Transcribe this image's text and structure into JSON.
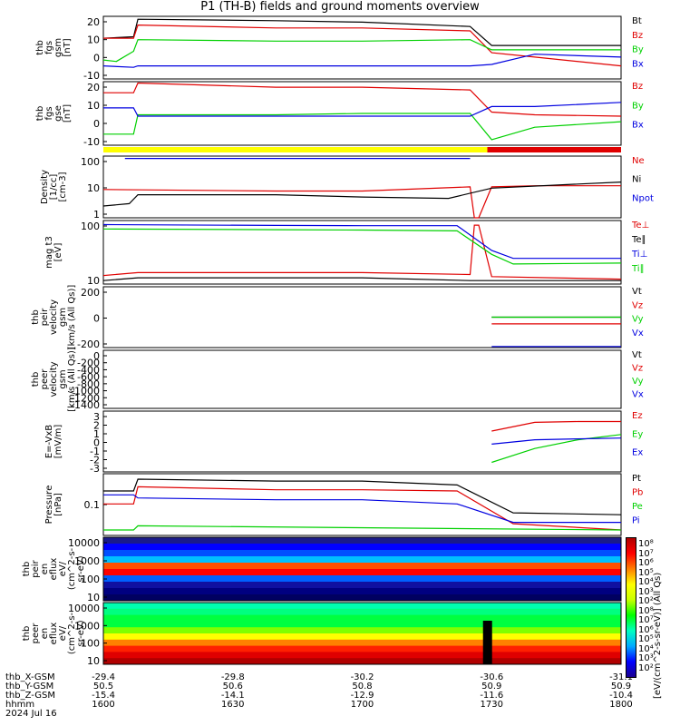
{
  "title": "P1 (TH-B) fields and ground moments overview",
  "colors": {
    "black": "#000000",
    "red": "#e00000",
    "green": "#00d000",
    "blue": "#0000e0",
    "yellow": "#ffff00"
  },
  "panels": [
    {
      "id": "fgs-gsm",
      "ylabel": [
        "thb",
        "fgs",
        "gsm",
        "[nT]"
      ],
      "yticks": [
        "20",
        "10",
        "0",
        "-10"
      ],
      "legend": [
        {
          "t": "Bt",
          "c": "black"
        },
        {
          "t": "Bz",
          "c": "red"
        },
        {
          "t": "By",
          "c": "green"
        },
        {
          "t": "Bx",
          "c": "blue"
        }
      ]
    },
    {
      "id": "fgs-gse",
      "ylabel": [
        "thb",
        "fgs",
        "gse",
        "[nT]"
      ],
      "yticks": [
        "20",
        "10",
        "0",
        "-10"
      ],
      "legend": [
        {
          "t": "Bz",
          "c": "red"
        },
        {
          "t": "By",
          "c": "green"
        },
        {
          "t": "Bx",
          "c": "blue"
        }
      ]
    },
    {
      "id": "density",
      "ylabel": [
        "Density",
        "[1/cc]",
        "[cm-3]"
      ],
      "yticks": [
        "100",
        "10",
        "1"
      ],
      "legend": [
        {
          "t": "Ne",
          "c": "red"
        },
        {
          "t": "Ni",
          "c": "black"
        },
        {
          "t": "Npot",
          "c": "blue"
        }
      ]
    },
    {
      "id": "temperature",
      "ylabel": [
        "mag t3",
        "[eV]"
      ],
      "yticks": [
        "100",
        "10"
      ],
      "legend": [
        {
          "t": "Te⊥",
          "c": "red"
        },
        {
          "t": "Te∥",
          "c": "black"
        },
        {
          "t": "Ti⊥",
          "c": "blue"
        },
        {
          "t": "Ti∥",
          "c": "green"
        }
      ]
    },
    {
      "id": "peir-velocity",
      "ylabel": [
        "thb",
        "peir",
        "velocity",
        "gsm",
        "[km/s (All Qs)]"
      ],
      "yticks": [
        "200",
        "0",
        "-200"
      ],
      "legend": [
        {
          "t": "Vt",
          "c": "black"
        },
        {
          "t": "Vz",
          "c": "red"
        },
        {
          "t": "Vy",
          "c": "green"
        },
        {
          "t": "Vx",
          "c": "blue"
        }
      ]
    },
    {
      "id": "peer-velocity",
      "ylabel": [
        "thb",
        "peer",
        "velocity",
        "gsm",
        "[km/s (All Qs)]"
      ],
      "yticks": [
        "0",
        "-200",
        "-400",
        "-600",
        "-800",
        "-1000",
        "-1200",
        "-1400"
      ],
      "legend": [
        {
          "t": "Vt",
          "c": "black"
        },
        {
          "t": "Vz",
          "c": "red"
        },
        {
          "t": "Vy",
          "c": "green"
        },
        {
          "t": "Vx",
          "c": "blue"
        }
      ]
    },
    {
      "id": "efield",
      "ylabel": [
        "E=-VxB",
        "[mV/m]"
      ],
      "yticks": [
        "3",
        "2",
        "1",
        "0",
        "-1",
        "-2",
        "-3"
      ],
      "legend": [
        {
          "t": "Ez",
          "c": "red"
        },
        {
          "t": "Ey",
          "c": "green"
        },
        {
          "t": "Ex",
          "c": "blue"
        }
      ]
    },
    {
      "id": "pressure",
      "ylabel": [
        "Pressure",
        "[nPa]"
      ],
      "yticks": [
        "0.1"
      ],
      "legend": [
        {
          "t": "Pt",
          "c": "black"
        },
        {
          "t": "Pb",
          "c": "red"
        },
        {
          "t": "Pe",
          "c": "green"
        },
        {
          "t": "Pi",
          "c": "blue"
        }
      ]
    },
    {
      "id": "peir-eflux",
      "ylabel": [
        "thb",
        "peir",
        "en",
        "eflux",
        "eV/",
        "(cm^2-s-",
        "sr-eV)"
      ],
      "yticks": [
        "10000",
        "1000",
        "100",
        "10"
      ],
      "legend": []
    },
    {
      "id": "peer-eflux",
      "ylabel": [
        "thb",
        "peer",
        "en",
        "eflux",
        "eV/",
        "(cm^2-s-",
        "sr-eV)"
      ],
      "yticks": [
        "10000",
        "1000",
        "100",
        "10"
      ],
      "legend": []
    }
  ],
  "colorbar": {
    "labels": [
      "10⁸",
      "10⁷",
      "10⁶",
      "10⁵",
      "10⁴",
      "10³",
      "10²",
      "10⁸",
      "10⁷",
      "10⁶",
      "10⁵",
      "10⁴",
      "10³",
      "10²"
    ],
    "unit": "[eV/(cm^2-s-sr-eV)] (All Qs)"
  },
  "xaxis": {
    "rows": [
      {
        "label": "thb_X-GSM",
        "vals": [
          "-29.4",
          "-29.8",
          "-30.2",
          "-30.6",
          "-31.1"
        ]
      },
      {
        "label": "thb_Y-GSM",
        "vals": [
          "50.5",
          "50.6",
          "50.8",
          "50.9",
          "50.9"
        ]
      },
      {
        "label": "thb_Z-GSM",
        "vals": [
          "-15.4",
          "-14.1",
          "-12.9",
          "-11.6",
          "-10.4"
        ]
      },
      {
        "label": "hhmm",
        "vals": [
          "1600",
          "1630",
          "1700",
          "1730",
          "1800"
        ]
      }
    ],
    "date": "2024 Jul 16"
  },
  "chart_data": {
    "type": "line",
    "title": "P1 (TH-B) fields and ground moments overview",
    "x_time": [
      "1600",
      "1630",
      "1700",
      "1730",
      "1800"
    ],
    "panels": [
      {
        "name": "fgs-gsm",
        "ylabel": "thb fgs gsm [nT]",
        "ylim": [
          -15,
          28
        ],
        "series": [
          {
            "name": "Bt",
            "x": [
              "1600",
              "1607",
              "1608",
              "1640",
              "1700",
              "1725",
              "1730",
              "1740",
              "1800"
            ],
            "values": [
              13,
              14,
              26,
              25,
              24,
              21,
              8,
              8,
              8
            ]
          },
          {
            "name": "Bz",
            "x": [
              "1600",
              "1607",
              "1608",
              "1640",
              "1700",
              "1725",
              "1730",
              "1740",
              "1800"
            ],
            "values": [
              13,
              13,
              22,
              20,
              20,
              18,
              3,
              0,
              -6
            ]
          },
          {
            "name": "By",
            "x": [
              "1600",
              "1603",
              "1607",
              "1608",
              "1640",
              "1700",
              "1725",
              "1730",
              "1740",
              "1800"
            ],
            "values": [
              -2,
              -3,
              4,
              12,
              11,
              11,
              12,
              5,
              5,
              5
            ]
          },
          {
            "name": "Bx",
            "x": [
              "1600",
              "1607",
              "1608",
              "1640",
              "1700",
              "1725",
              "1730",
              "1740",
              "1800"
            ],
            "values": [
              -6,
              -7,
              -6,
              -6,
              -6,
              -6,
              -5,
              2,
              0
            ]
          }
        ]
      },
      {
        "name": "fgs-gse",
        "ylabel": "thb fgs gse [nT]",
        "ylim": [
          -18,
          28
        ],
        "series": [
          {
            "name": "Bz",
            "x": [
              "1600",
              "1607",
              "1608",
              "1640",
              "1700",
              "1725",
              "1730",
              "1740",
              "1800"
            ],
            "values": [
              20,
              20,
              27,
              24,
              24,
              22,
              6,
              4,
              3
            ]
          },
          {
            "name": "By",
            "x": [
              "1600",
              "1607",
              "1608",
              "1640",
              "1700",
              "1725",
              "1730",
              "1740",
              "1800"
            ],
            "values": [
              -10,
              -10,
              4,
              4,
              5,
              5,
              -14,
              -5,
              -1
            ]
          },
          {
            "name": "Bx",
            "x": [
              "1600",
              "1607",
              "1608",
              "1640",
              "1700",
              "1725",
              "1730",
              "1740",
              "1800"
            ],
            "values": [
              9,
              9,
              3,
              3,
              3,
              3,
              10,
              10,
              13
            ]
          }
        ]
      },
      {
        "name": "density",
        "ylabel": "Density [1/cc] [cm-3]",
        "ylim": [
          1,
          120
        ],
        "log": true,
        "series": [
          {
            "name": "Ne",
            "x": [
              "1600",
              "1640",
              "1700",
              "1725",
              "1726",
              "1727",
              "1730",
              "1740",
              "1800"
            ],
            "values": [
              9,
              8,
              8,
              11,
              1,
              1,
              11,
              12,
              12
            ]
          },
          {
            "name": "Ni",
            "x": [
              "1600",
              "1606",
              "1608",
              "1640",
              "1700",
              "1720",
              "1730",
              "1800"
            ],
            "values": [
              2.5,
              3,
              6,
              6,
              5,
              4.5,
              10,
              16
            ]
          },
          {
            "name": "Npot",
            "x": [
              "1605",
              "1725"
            ],
            "values": [
              100,
              100
            ]
          }
        ]
      },
      {
        "name": "temperature",
        "ylabel": "mag t3 [eV]",
        "ylim": [
          7,
          700
        ],
        "log": true,
        "series": [
          {
            "name": "Te⊥",
            "x": [
              "1600",
              "1608",
              "1640",
              "1700",
              "1725",
              "1726",
              "1727",
              "1730",
              "1800"
            ],
            "values": [
              13,
              16,
              16,
              16,
              14,
              500,
              500,
              12,
              10
            ]
          },
          {
            "name": "Te∥",
            "x": [
              "1600",
              "1608",
              "1640",
              "1700",
              "1725",
              "1730",
              "1800"
            ],
            "values": [
              9,
              11,
              11,
              11,
              9,
              9,
              9
            ]
          },
          {
            "name": "Ti⊥",
            "x": [
              "1600",
              "1640",
              "1700",
              "1722",
              "1730",
              "1735",
              "1800"
            ],
            "values": [
              520,
              490,
              480,
              480,
              80,
              45,
              45
            ]
          },
          {
            "name": "Ti∥",
            "x": [
              "1600",
              "1640",
              "1700",
              "1722",
              "1730",
              "1735",
              "1800"
            ],
            "values": [
              380,
              360,
              350,
              330,
              60,
              30,
              32
            ]
          }
        ]
      },
      {
        "name": "peir-velocity",
        "ylabel": "thb peir velocity gsm [km/s (All Qs)]",
        "ylim": [
          -220,
          320
        ],
        "series": [
          {
            "name": "Vt",
            "x": [
              "1730",
              "1800"
            ],
            "values": [
              50,
              50
            ]
          },
          {
            "name": "Vz",
            "x": [
              "1730",
              "1800"
            ],
            "values": [
              -10,
              -10
            ]
          },
          {
            "name": "Vy",
            "x": [
              "1730",
              "1800"
            ],
            "values": [
              50,
              50
            ]
          },
          {
            "name": "Vx",
            "x": [
              "1730",
              "1800"
            ],
            "values": [
              -210,
              -210
            ]
          }
        ]
      },
      {
        "name": "peer-velocity",
        "ylabel": "thb peer velocity gsm [km/s (All Qs)]",
        "ylim": [
          -1500,
          100
        ],
        "series": []
      },
      {
        "name": "efield",
        "ylabel": "E=-VxB [mV/m]",
        "ylim": [
          -3.5,
          3.5
        ],
        "series": [
          {
            "name": "Ez",
            "x": [
              "1730",
              "1740",
              "1750",
              "1800"
            ],
            "values": [
              1.2,
              2.2,
              2.3,
              2.3
            ]
          },
          {
            "name": "Ey",
            "x": [
              "1730",
              "1740",
              "1750",
              "1800"
            ],
            "values": [
              -2.4,
              -0.8,
              0.2,
              0.8
            ]
          },
          {
            "name": "Ex",
            "x": [
              "1730",
              "1740",
              "1750",
              "1800"
            ],
            "values": [
              -0.3,
              0.2,
              0.3,
              0.4
            ]
          }
        ]
      },
      {
        "name": "pressure",
        "ylabel": "Pressure [nPa]",
        "ylim": [
          0.015,
          0.4
        ],
        "log": true,
        "series": [
          {
            "name": "Pt",
            "x": [
              "1600",
              "1607",
              "1608",
              "1640",
              "1700",
              "1722",
              "1735",
              "1800"
            ],
            "values": [
              0.16,
              0.16,
              0.3,
              0.27,
              0.27,
              0.22,
              0.05,
              0.045
            ]
          },
          {
            "name": "Pb",
            "x": [
              "1600",
              "1607",
              "1608",
              "1640",
              "1700",
              "1722",
              "1735",
              "1800"
            ],
            "values": [
              0.08,
              0.08,
              0.2,
              0.17,
              0.17,
              0.16,
              0.028,
              0.02
            ]
          },
          {
            "name": "Pe",
            "x": [
              "1600",
              "1607",
              "1608",
              "1800"
            ],
            "values": [
              0.02,
              0.02,
              0.025,
              0.02
            ]
          },
          {
            "name": "Pi",
            "x": [
              "1600",
              "1607",
              "1608",
              "1640",
              "1700",
              "1722",
              "1735",
              "1800"
            ],
            "values": [
              0.13,
              0.13,
              0.11,
              0.1,
              0.1,
              0.08,
              0.03,
              0.03
            ]
          }
        ]
      }
    ]
  }
}
